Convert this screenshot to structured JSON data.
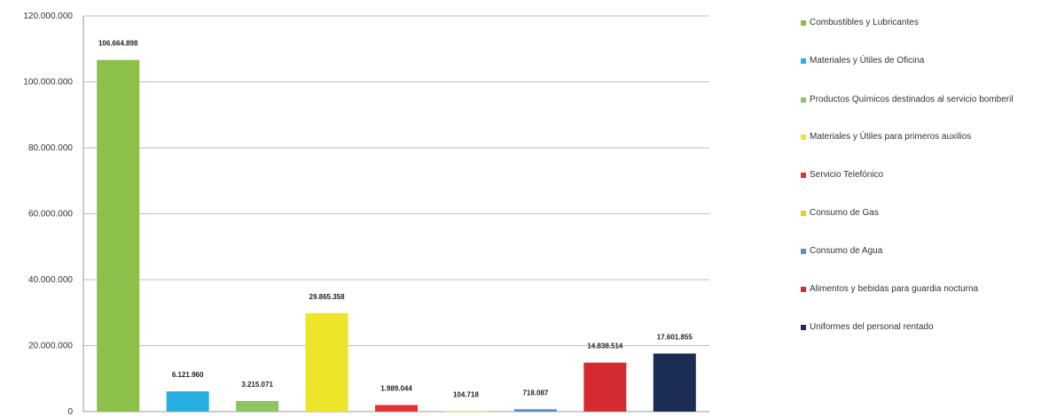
{
  "chart_data": {
    "type": "bar",
    "title": "",
    "xlabel": "",
    "ylabel": "",
    "ylim": [
      0,
      120000000
    ],
    "y_ticks": [
      "0",
      "20.000.000",
      "40.000.000",
      "60.000.000",
      "80.000.000",
      "100.000.000",
      "120.000.000"
    ],
    "y_tick_values": [
      0,
      20000000,
      40000000,
      60000000,
      80000000,
      100000000,
      120000000
    ],
    "grid": "horizontal",
    "legend_position": "right",
    "categories": [
      "Combustibles y Lubricantes",
      "Materiales y Útiles de Oficina",
      "Productos Químicos destinados al servicio bomberil",
      "Materiales y Útiles para primeros auxilios",
      "Servicio Telefónico",
      "Consumo de Gas",
      "Consumo de Agua",
      "Alimentos y bebidas para guardia nocturna",
      "Uniformes del personal rentado"
    ],
    "values": [
      106664898,
      6121960,
      3215071,
      29865358,
      1989044,
      104718,
      718087,
      14838514,
      17601855
    ],
    "data_labels": [
      "106.664.898",
      "6.121.960",
      "3.215.071",
      "29.865.358",
      "1.989.044",
      "104.718",
      "718.087",
      "14.838.514",
      "17.601.855"
    ],
    "colors": [
      "#8dc04a",
      "#27aee0",
      "#8cc564",
      "#ece52a",
      "#e4302f",
      "#e9cb2c",
      "#5c8fcd",
      "#d42b30",
      "#1b2c55"
    ]
  }
}
